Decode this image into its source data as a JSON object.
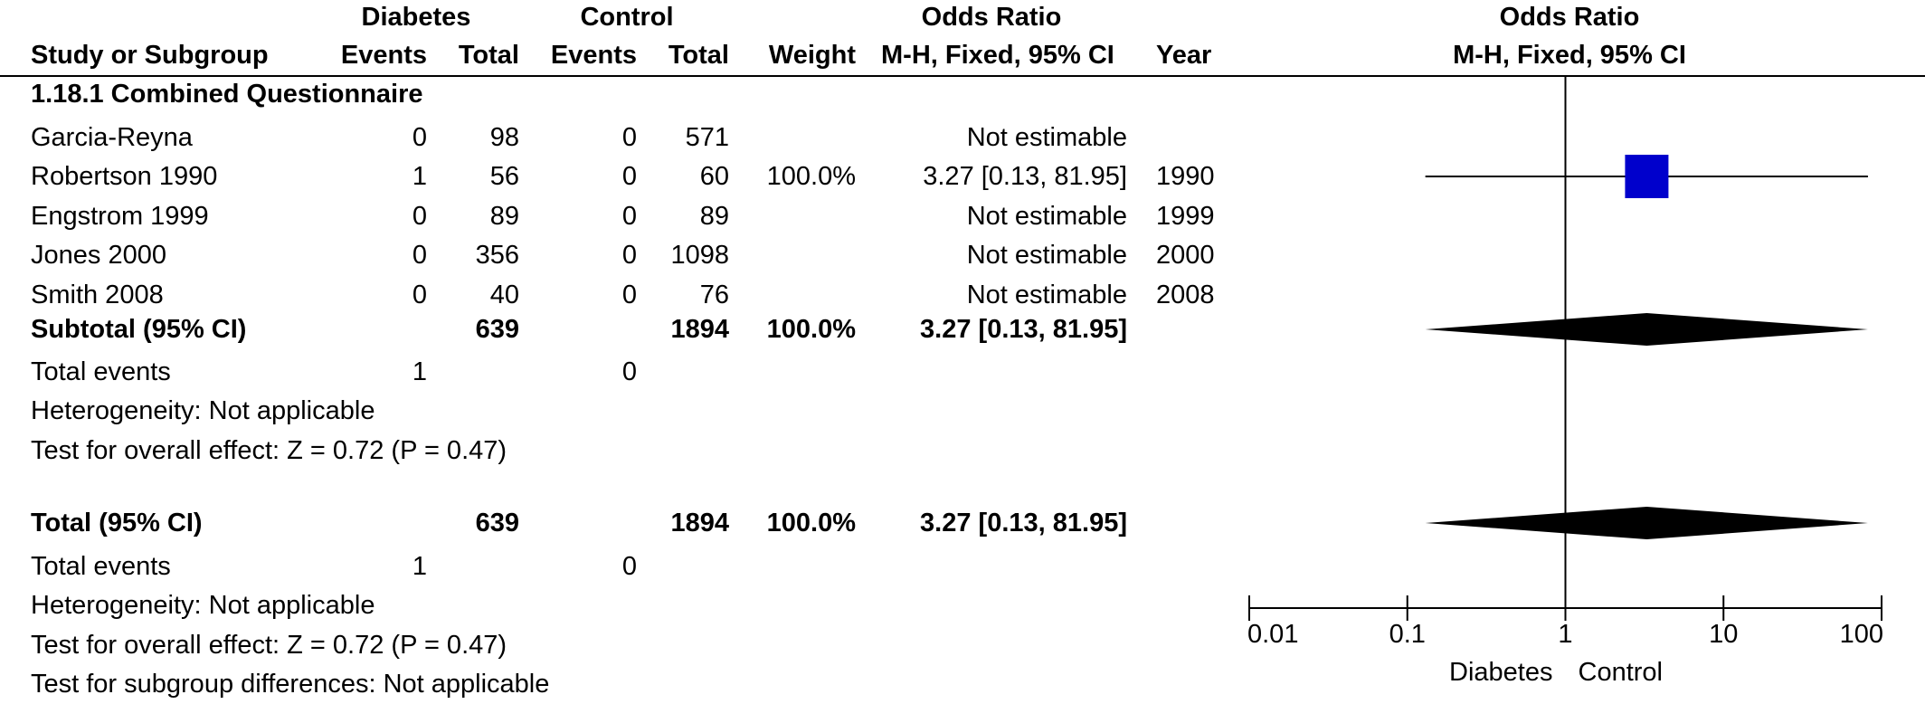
{
  "header": {
    "group1": "Diabetes",
    "group2": "Control",
    "or_title": "Odds Ratio",
    "plot_title": "Odds Ratio",
    "col_study": "Study or Subgroup",
    "col_events1": "Events",
    "col_total1": "Total",
    "col_events2": "Events",
    "col_total2": "Total",
    "col_weight": "Weight",
    "col_or": "M-H, Fixed, 95% CI",
    "col_year": "Year",
    "plot_subtitle": "M-H, Fixed, 95% CI"
  },
  "subgroup": {
    "title": "1.18.1 Combined Questionnaire",
    "subtotal": {
      "label": "Subtotal (95% CI)",
      "total1": "639",
      "total2": "1894",
      "weight": "100.0%",
      "or": "3.27 [0.13, 81.95]"
    },
    "total_events": {
      "label": "Total events",
      "events1": "1",
      "events2": "0"
    },
    "heterogeneity": "Heterogeneity: Not applicable",
    "overall_effect": "Test for overall effect: Z = 0.72 (P = 0.47)"
  },
  "total": {
    "label": "Total (95% CI)",
    "total1": "639",
    "total2": "1894",
    "weight": "100.0%",
    "or": "3.27 [0.13, 81.95]",
    "total_events": {
      "label": "Total events",
      "events1": "1",
      "events2": "0"
    },
    "heterogeneity": "Heterogeneity: Not applicable",
    "overall_effect": "Test for overall effect: Z = 0.72 (P = 0.47)",
    "subgroup_diff": "Test for subgroup differences: Not applicable"
  },
  "chart_data": {
    "type": "forest",
    "title": "Odds Ratio",
    "subtitle": "M-H, Fixed, 95% CI",
    "x_scale": "log",
    "xlim": [
      0.01,
      100
    ],
    "ticks": [
      0.01,
      0.1,
      1,
      10,
      100
    ],
    "tick_labels": [
      "0.01",
      "0.1",
      "1",
      "10",
      "100"
    ],
    "reference_line": 1,
    "favours_left": "Diabetes",
    "favours_right": "Control",
    "marker_color": "#0000CC",
    "studies": [
      {
        "name": "Garcia-Reyna",
        "events1": "0",
        "total1": "98",
        "events2": "0",
        "total2": "571",
        "weight": "",
        "or_text": "Not estimable",
        "year": "",
        "or": null,
        "ci_low": null,
        "ci_high": null
      },
      {
        "name": "Robertson 1990",
        "events1": "1",
        "total1": "56",
        "events2": "0",
        "total2": "60",
        "weight": "100.0%",
        "or_text": "3.27 [0.13, 81.95]",
        "year": "1990",
        "or": 3.27,
        "ci_low": 0.13,
        "ci_high": 81.95
      },
      {
        "name": "Engstrom 1999",
        "events1": "0",
        "total1": "89",
        "events2": "0",
        "total2": "89",
        "weight": "",
        "or_text": "Not estimable",
        "year": "1999",
        "or": null,
        "ci_low": null,
        "ci_high": null
      },
      {
        "name": "Jones 2000",
        "events1": "0",
        "total1": "356",
        "events2": "0",
        "total2": "1098",
        "weight": "",
        "or_text": "Not estimable",
        "year": "2000",
        "or": null,
        "ci_low": null,
        "ci_high": null
      },
      {
        "name": "Smith 2008",
        "events1": "0",
        "total1": "40",
        "events2": "0",
        "total2": "76",
        "weight": "",
        "or_text": "Not estimable",
        "year": "2008",
        "or": null,
        "ci_low": null,
        "ci_high": null
      }
    ],
    "pooled": [
      {
        "label": "Subtotal (95% CI)",
        "or": 3.27,
        "ci_low": 0.13,
        "ci_high": 81.95
      },
      {
        "label": "Total (95% CI)",
        "or": 3.27,
        "ci_low": 0.13,
        "ci_high": 81.95
      }
    ]
  }
}
